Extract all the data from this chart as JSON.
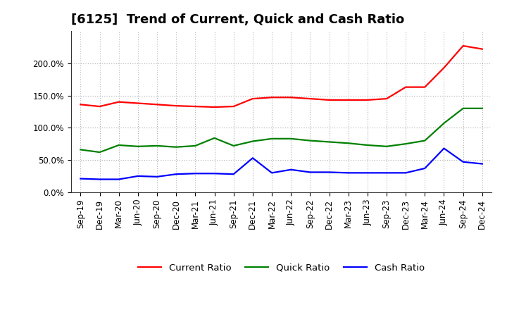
{
  "title": "[6125]  Trend of Current, Quick and Cash Ratio",
  "x_labels": [
    "Sep-19",
    "Dec-19",
    "Mar-20",
    "Jun-20",
    "Sep-20",
    "Dec-20",
    "Mar-21",
    "Jun-21",
    "Sep-21",
    "Dec-21",
    "Mar-22",
    "Jun-22",
    "Sep-22",
    "Dec-22",
    "Mar-23",
    "Jun-23",
    "Sep-23",
    "Dec-23",
    "Mar-24",
    "Jun-24",
    "Sep-24",
    "Dec-24"
  ],
  "current_ratio": [
    136,
    133,
    140,
    138,
    136,
    134,
    133,
    132,
    133,
    145,
    147,
    147,
    145,
    143,
    143,
    143,
    145,
    163,
    163,
    193,
    227,
    222
  ],
  "quick_ratio": [
    66,
    62,
    73,
    71,
    72,
    70,
    72,
    84,
    72,
    79,
    83,
    83,
    80,
    78,
    76,
    73,
    71,
    75,
    80,
    107,
    130,
    130
  ],
  "cash_ratio": [
    21,
    20,
    20,
    25,
    24,
    28,
    29,
    29,
    28,
    53,
    30,
    35,
    31,
    31,
    30,
    30,
    30,
    30,
    37,
    68,
    47,
    44
  ],
  "current_color": "#ff0000",
  "quick_color": "#008000",
  "cash_color": "#0000ff",
  "ylim": [
    0,
    250
  ],
  "yticks": [
    0,
    50,
    100,
    150,
    200
  ],
  "bg_color": "#ffffff",
  "plot_bg_color": "#ffffff",
  "grid_color": "#b0b0b0",
  "line_width": 1.6,
  "title_fontsize": 13,
  "tick_fontsize": 8.5,
  "legend_fontsize": 9.5
}
